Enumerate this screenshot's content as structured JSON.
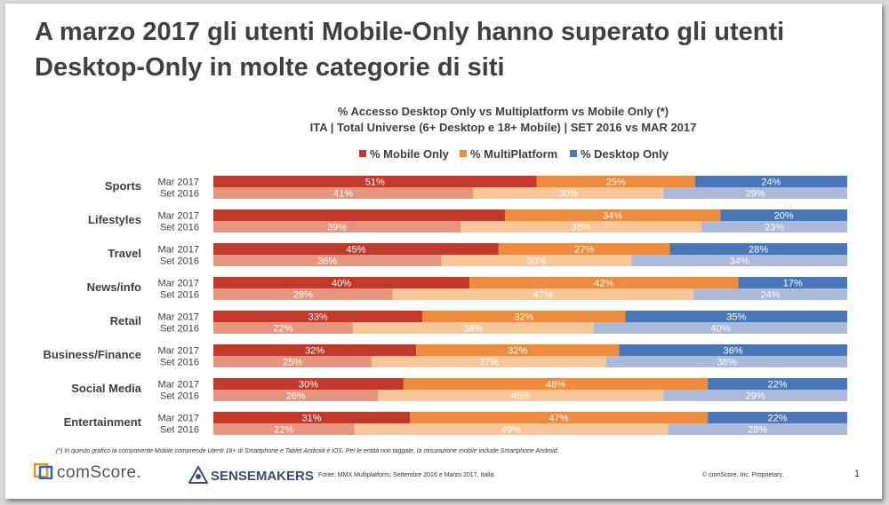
{
  "slide_title": "A marzo 2017 gli utenti Mobile-Only hanno superato gli utenti Desktop-Only in molte categorie di siti",
  "footnote": "(*) In questo grafico la componente Mobile comprende Utenti 18+ di Smartphone e Tablet Android e iOS. Per le entità non taggate, la misurazione mobile include Smartphone Android.",
  "brands": {
    "comscore": "comScore.",
    "sensemakers": "SENSEMAKERS"
  },
  "source": "Fonte: MMX Multiplatform, Settembre 2016 e Marzo 2017, Italia",
  "copyright": "© comScore, Inc. Proprietary.",
  "page_number": "1",
  "colors": {
    "mobile": "#c0392b",
    "multi": "#ed8b3f",
    "desktop": "#4a76b8",
    "mobile_light": "#e6957f",
    "multi_light": "#f7c799",
    "desktop_light": "#aabad8"
  },
  "chart_data": {
    "type": "bar",
    "orientation": "horizontal-stacked-100",
    "title": "% Accesso Desktop Only vs Multiplatform vs Mobile Only (*)",
    "subtitle": "ITA | Total Universe (6+ Desktop e 18+ Mobile) | SET 2016 vs MAR 2017",
    "legend": [
      "% Mobile Only",
      "% MultiPlatform",
      "% Desktop Only"
    ],
    "legend_position": "top",
    "periods": [
      "Mar 2017",
      "Set 2016"
    ],
    "categories": [
      {
        "name": "Sports",
        "mar2017": [
          51,
          25,
          24
        ],
        "set2016": [
          41,
          30,
          29
        ]
      },
      {
        "name": "Lifestyles",
        "mar2017": [
          46,
          34,
          20
        ],
        "set2016": [
          39,
          38,
          23
        ]
      },
      {
        "name": "Travel",
        "mar2017": [
          45,
          27,
          28
        ],
        "set2016": [
          36,
          30,
          34
        ]
      },
      {
        "name": "News/info",
        "mar2017": [
          40,
          42,
          17
        ],
        "set2016": [
          28,
          47,
          24
        ]
      },
      {
        "name": "Retail",
        "mar2017": [
          33,
          32,
          35
        ],
        "set2016": [
          22,
          38,
          40
        ]
      },
      {
        "name": "Business/Finance",
        "mar2017": [
          32,
          32,
          36
        ],
        "set2016": [
          25,
          37,
          38
        ]
      },
      {
        "name": "Social Media",
        "mar2017": [
          30,
          48,
          22
        ],
        "set2016": [
          26,
          45,
          29
        ]
      },
      {
        "name": "Entertainment",
        "mar2017": [
          31,
          47,
          22
        ],
        "set2016": [
          22,
          49,
          28
        ]
      }
    ],
    "data_labels": {
      "Sports": {
        "mar2017": [
          "51%",
          "25%",
          "24%"
        ],
        "set2016": [
          "41%",
          "30%",
          "29%"
        ]
      },
      "Lifestyles": {
        "mar2017": [
          "",
          "34%",
          "20%"
        ],
        "set2016": [
          "39%",
          "38%",
          "23%"
        ]
      },
      "Travel": {
        "mar2017": [
          "45%",
          "27%",
          "28%"
        ],
        "set2016": [
          "36%",
          "30%",
          "34%"
        ]
      },
      "News/info": {
        "mar2017": [
          "40%",
          "42%",
          "17%"
        ],
        "set2016": [
          "28%",
          "47%",
          "24%"
        ]
      },
      "Retail": {
        "mar2017": [
          "33%",
          "32%",
          "35%"
        ],
        "set2016": [
          "22%",
          "38%",
          "40%"
        ]
      },
      "Business/Finance": {
        "mar2017": [
          "32%",
          "32%",
          "36%"
        ],
        "set2016": [
          "25%",
          "37%",
          "38%"
        ]
      },
      "Social Media": {
        "mar2017": [
          "30%",
          "48%",
          "22%"
        ],
        "set2016": [
          "26%",
          "45%",
          "29%"
        ]
      },
      "Entertainment": {
        "mar2017": [
          "31%",
          "47%",
          "22%"
        ],
        "set2016": [
          "22%",
          "49%",
          "28%"
        ]
      }
    },
    "xlim": [
      0,
      100
    ]
  }
}
